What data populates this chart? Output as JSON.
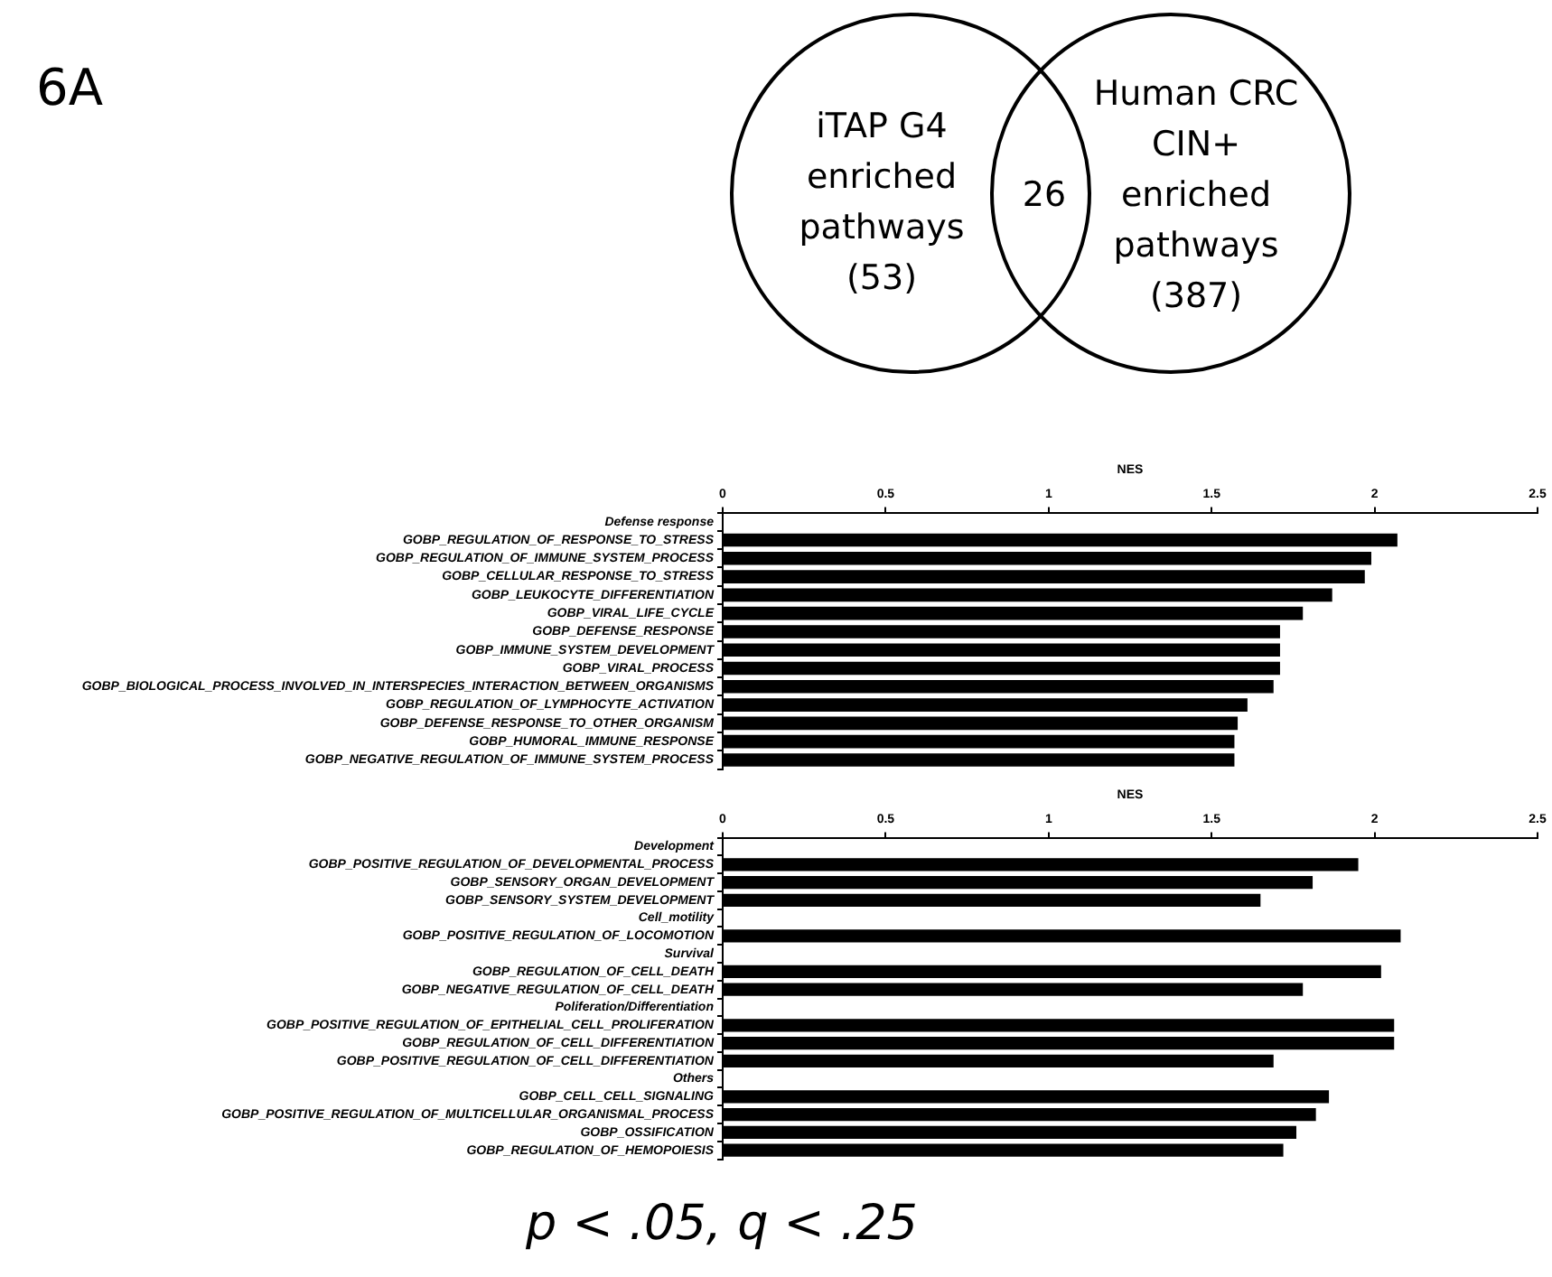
{
  "chart_data": [
    {
      "type": "other",
      "title": "6A",
      "annotations": [
        "iTAP G4 enriched pathways (53)",
        "26",
        "Human CRC CIN+ enriched pathways (387)"
      ]
    },
    {
      "type": "bar",
      "orientation": "horizontal",
      "xlabel": "NES",
      "categories": [
        "Defense response",
        "GOBP_REGULATION_OF_RESPONSE_TO_STRESS",
        "GOBP_REGULATION_OF_IMMUNE_SYSTEM_PROCESS",
        "GOBP_CELLULAR_RESPONSE_TO_STRESS",
        "GOBP_LEUKOCYTE_DIFFERENTIATION",
        "GOBP_VIRAL_LIFE_CYCLE",
        "GOBP_DEFENSE_RESPONSE",
        "GOBP_IMMUNE_SYSTEM_DEVELOPMENT",
        "GOBP_VIRAL_PROCESS",
        "GOBP_BIOLOGICAL_PROCESS_INVOLVED_IN_INTERSPECIES_INTERACTION_BETWEEN_ORGANISMS",
        "GOBP_REGULATION_OF_LYMPHOCYTE_ACTIVATION",
        "GOBP_DEFENSE_RESPONSE_TO_OTHER_ORGANISM",
        "GOBP_HUMORAL_IMMUNE_RESPONSE",
        "GOBP_NEGATIVE_REGULATION_OF_IMMUNE_SYSTEM_PROCESS"
      ],
      "values": [
        null,
        2.07,
        1.99,
        1.97,
        1.87,
        1.78,
        1.71,
        1.71,
        1.71,
        1.69,
        1.61,
        1.58,
        1.57,
        1.57
      ],
      "color": "#000000",
      "xlim": [
        0,
        2.5
      ],
      "xticks": [
        0,
        0.5,
        1,
        1.5,
        2,
        2.5
      ]
    },
    {
      "type": "bar",
      "orientation": "horizontal",
      "xlabel": "NES",
      "categories": [
        "Development",
        "GOBP_POSITIVE_REGULATION_OF_DEVELOPMENTAL_PROCESS",
        "GOBP_SENSORY_ORGAN_DEVELOPMENT",
        "GOBP_SENSORY_SYSTEM_DEVELOPMENT",
        "Cell_motility",
        "GOBP_POSITIVE_REGULATION_OF_LOCOMOTION",
        "Survival",
        "GOBP_REGULATION_OF_CELL_DEATH",
        "GOBP_NEGATIVE_REGULATION_OF_CELL_DEATH",
        "Poliferation/Differentiation",
        "GOBP_POSITIVE_REGULATION_OF_EPITHELIAL_CELL_PROLIFERATION",
        "GOBP_REGULATION_OF_CELL_DIFFERENTIATION",
        "GOBP_POSITIVE_REGULATION_OF_CELL_DIFFERENTIATION",
        "Others",
        "GOBP_CELL_CELL_SIGNALING",
        "GOBP_POSITIVE_REGULATION_OF_MULTICELLULAR_ORGANISMAL_PROCESS",
        "GOBP_OSSIFICATION",
        "GOBP_REGULATION_OF_HEMOPOIESIS"
      ],
      "values": [
        null,
        1.95,
        1.81,
        1.65,
        null,
        2.08,
        null,
        2.02,
        1.78,
        null,
        2.06,
        2.06,
        1.69,
        null,
        1.86,
        1.82,
        1.76,
        1.72
      ],
      "color": "#000000",
      "xlim": [
        0,
        2.5
      ],
      "xticks": [
        0,
        0.5,
        1,
        1.5,
        2,
        2.5
      ],
      "annotations": [
        "p < .05, q < .25"
      ]
    }
  ]
}
